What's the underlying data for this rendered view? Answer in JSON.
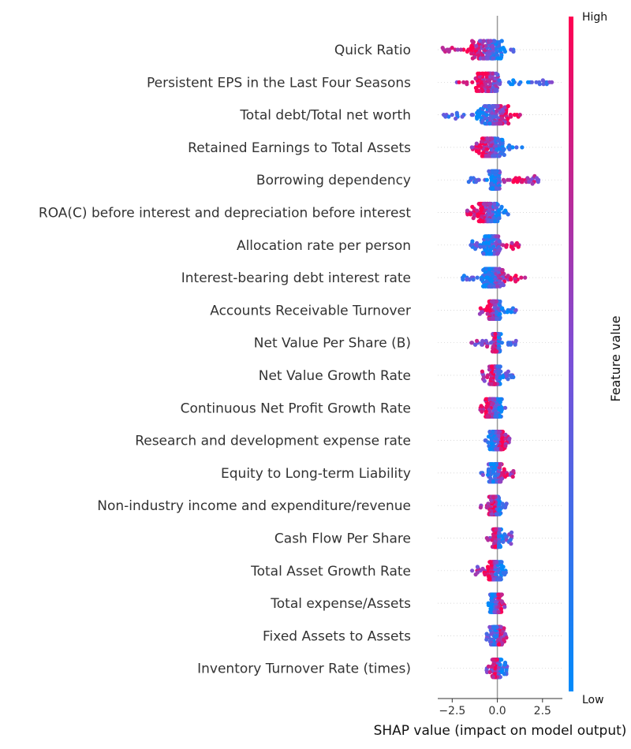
{
  "chart_data": {
    "type": "scatter",
    "xlabel": "SHAP value (impact on model output)",
    "xlim": [
      -3.3,
      3.6
    ],
    "xticks": [
      -2.5,
      0.0,
      2.5
    ],
    "xtick_labels": [
      "−2.5",
      "0.0",
      "2.5"
    ],
    "colorbar": {
      "label": "Feature value",
      "high": "High",
      "low": "Low",
      "high_color": "#ff0051",
      "low_color": "#008bfb"
    },
    "features": [
      {
        "name": "Quick Ratio",
        "shap_range": [
          -3.1,
          0.9
        ],
        "core": [
          -1.8,
          0.7
        ],
        "high_center": -1.5,
        "low_center": 0.3
      },
      {
        "name": "Persistent EPS in the Last Four Seasons",
        "shap_range": [
          -2.3,
          3.2
        ],
        "core": [
          -1.3,
          0.2
        ],
        "high_center": -1.1,
        "low_center": 1.0
      },
      {
        "name": "Total debt/Total net worth",
        "shap_range": [
          -3.0,
          1.3
        ],
        "core": [
          -1.2,
          0.8
        ],
        "high_center": 0.8,
        "low_center": -1.0
      },
      {
        "name": "Retained Earnings to Total Assets",
        "shap_range": [
          -1.6,
          1.4
        ],
        "core": [
          -1.2,
          0.5
        ],
        "high_center": -0.9,
        "low_center": 0.4
      },
      {
        "name": "Borrowing dependency",
        "shap_range": [
          -1.6,
          2.3
        ],
        "core": [
          -0.5,
          0.2
        ],
        "high_center": 1.0,
        "low_center": -0.3
      },
      {
        "name": "ROA(C) before interest and depreciation before interest",
        "shap_range": [
          -1.8,
          0.8
        ],
        "core": [
          -1.3,
          0.3
        ],
        "high_center": -1.0,
        "low_center": 0.2
      },
      {
        "name": "Allocation rate per person",
        "shap_range": [
          -1.5,
          1.3
        ],
        "core": [
          -0.9,
          0.3
        ],
        "high_center": 0.6,
        "low_center": -0.5
      },
      {
        "name": "Interest-bearing debt interest rate",
        "shap_range": [
          -2.0,
          1.7
        ],
        "core": [
          -1.0,
          0.5
        ],
        "high_center": 0.8,
        "low_center": -0.6
      },
      {
        "name": "Accounts Receivable Turnover",
        "shap_range": [
          -1.0,
          1.1
        ],
        "core": [
          -0.6,
          0.2
        ],
        "high_center": -0.5,
        "low_center": 0.3
      },
      {
        "name": "Net Value Per Share (B)",
        "shap_range": [
          -1.5,
          1.1
        ],
        "core": [
          -0.3,
          0.2
        ],
        "high_center": -0.1,
        "low_center": 0.1
      },
      {
        "name": "Net Value Growth Rate",
        "shap_range": [
          -0.9,
          0.9
        ],
        "core": [
          -0.5,
          0.2
        ],
        "high_center": -0.3,
        "low_center": 0.2
      },
      {
        "name": "Continuous Net Profit Growth Rate",
        "shap_range": [
          -1.0,
          0.5
        ],
        "core": [
          -0.7,
          0.3
        ],
        "high_center": -0.6,
        "low_center": 0.2
      },
      {
        "name": "Research and development expense rate",
        "shap_range": [
          -0.7,
          0.7
        ],
        "core": [
          -0.5,
          0.5
        ],
        "high_center": 0.3,
        "low_center": -0.3
      },
      {
        "name": "Equity to Long-term Liability",
        "shap_range": [
          -0.9,
          0.9
        ],
        "core": [
          -0.5,
          0.3
        ],
        "high_center": 0.4,
        "low_center": -0.2
      },
      {
        "name": "Non-industry income and expenditure/revenue",
        "shap_range": [
          -1.0,
          0.6
        ],
        "core": [
          -0.5,
          0.2
        ],
        "high_center": -0.2,
        "low_center": 0.1
      },
      {
        "name": "Cash Flow Per Share",
        "shap_range": [
          -0.6,
          0.8
        ],
        "core": [
          -0.3,
          0.2
        ],
        "high_center": -0.1,
        "low_center": 0.2
      },
      {
        "name": "Total Asset Growth Rate",
        "shap_range": [
          -1.5,
          0.6
        ],
        "core": [
          -0.6,
          0.3
        ],
        "high_center": -0.5,
        "low_center": 0.2
      },
      {
        "name": "Total expense/Assets",
        "shap_range": [
          -0.9,
          0.5
        ],
        "core": [
          -0.5,
          0.3
        ],
        "high_center": 0.2,
        "low_center": -0.3
      },
      {
        "name": "Fixed Assets to Assets",
        "shap_range": [
          -0.6,
          0.5
        ],
        "core": [
          -0.4,
          0.3
        ],
        "high_center": 0.1,
        "low_center": -0.1
      },
      {
        "name": "Inventory Turnover Rate (times)",
        "shap_range": [
          -0.6,
          0.7
        ],
        "core": [
          -0.3,
          0.2
        ],
        "high_center": -0.1,
        "low_center": 0.2
      }
    ]
  }
}
